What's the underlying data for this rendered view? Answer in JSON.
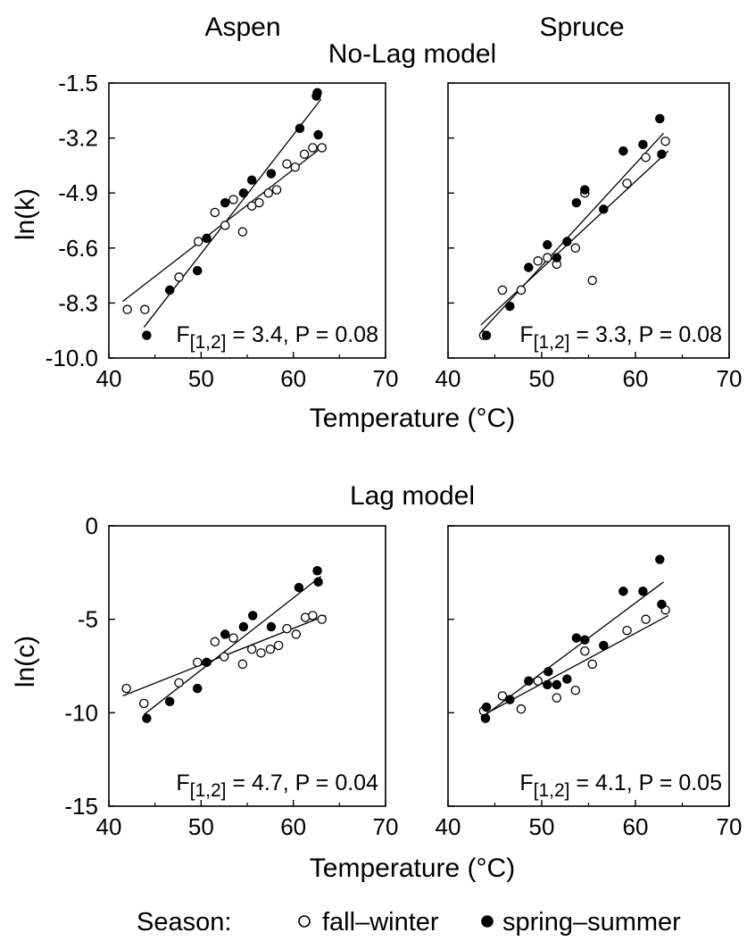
{
  "column_titles": [
    "Aspen",
    "Spruce"
  ],
  "row_titles": [
    "No-Lag model",
    "Lag model"
  ],
  "xlabel": "Temperature (°C)",
  "legend": {
    "title": "Season:",
    "entries": [
      {
        "label": "fall–winter",
        "marker": "open-circle"
      },
      {
        "label": "spring–summer",
        "marker": "filled-circle"
      }
    ]
  },
  "colors": {
    "ink": "#000000",
    "open_fill": "#ffffff"
  },
  "chart_data": [
    {
      "type": "scatter",
      "panel": "aspen-nolag",
      "ylabel": "ln(k)",
      "xlim": [
        40,
        70
      ],
      "ylim": [
        -10.0,
        -1.5
      ],
      "xticks": [
        "40",
        "50",
        "60",
        "70"
      ],
      "yticks": [
        "-10.0",
        "-8.3",
        "-6.6",
        "-4.9",
        "-3.2",
        "-1.5"
      ],
      "annotation": {
        "F": "F",
        "sub": "[1,2]",
        "stat": " = 3.4, P = 0.08",
        "placement": "bottom-right"
      },
      "series": [
        {
          "name": "fall–winter",
          "marker": "open",
          "x": [
            42,
            43.9,
            47.6,
            49.7,
            51.5,
            52.6,
            53.5,
            54.5,
            55.5,
            56.3,
            57.3,
            58.2,
            59.3,
            60.2,
            61.2,
            62.1,
            63.1
          ],
          "y": [
            -8.5,
            -8.5,
            -7.5,
            -6.4,
            -5.5,
            -5.9,
            -5.1,
            -6.1,
            -5.3,
            -5.2,
            -4.9,
            -4.8,
            -4.0,
            -4.1,
            -3.7,
            -3.5,
            -3.5
          ],
          "fit": [
            [
              41.5,
              -8.25
            ],
            [
              63.5,
              -3.4
            ]
          ]
        },
        {
          "name": "spring–summer",
          "marker": "filled",
          "x": [
            44.1,
            46.6,
            49.6,
            50.6,
            52.6,
            54.6,
            55.5,
            57.6,
            60.7,
            62.5,
            62.6,
            62.7
          ],
          "y": [
            -9.3,
            -7.9,
            -7.3,
            -6.3,
            -5.2,
            -4.9,
            -4.5,
            -4.3,
            -2.9,
            -1.9,
            -1.8,
            -3.1
          ],
          "fit": [
            [
              43.8,
              -9.05
            ],
            [
              63.0,
              -2.0
            ]
          ]
        }
      ]
    },
    {
      "type": "scatter",
      "panel": "spruce-nolag",
      "ylabel": "",
      "xlim": [
        40,
        70
      ],
      "ylim": [
        -10.0,
        -1.5
      ],
      "xticks": [
        "40",
        "50",
        "60",
        "70"
      ],
      "yticks": [],
      "annotation": {
        "F": "F",
        "sub": "[1,2]",
        "stat": " = 3.3, P = 0.08",
        "placement": "bottom-right"
      },
      "series": [
        {
          "name": "fall–winter",
          "marker": "open",
          "x": [
            43.8,
            45.8,
            47.8,
            49.6,
            50.6,
            51.6,
            53.6,
            54.6,
            55.4,
            59.1,
            61.1,
            63.2
          ],
          "y": [
            -9.3,
            -7.9,
            -7.9,
            -7.0,
            -6.9,
            -7.1,
            -6.6,
            -4.9,
            -7.6,
            -4.6,
            -3.8,
            -3.3
          ],
          "fit": [
            [
              43.5,
              -8.98
            ],
            [
              63.5,
              -3.6
            ]
          ]
        },
        {
          "name": "spring–summer",
          "marker": "filled",
          "x": [
            44.1,
            46.6,
            48.6,
            50.6,
            51.6,
            52.7,
            53.7,
            54.6,
            56.6,
            58.7,
            60.8,
            62.6,
            62.8
          ],
          "y": [
            -9.3,
            -8.4,
            -7.2,
            -6.5,
            -6.9,
            -6.4,
            -5.2,
            -4.8,
            -5.4,
            -3.6,
            -3.4,
            -2.6,
            -3.7
          ],
          "fit": [
            [
              43.5,
              -9.2
            ],
            [
              63.0,
              -3.05
            ]
          ]
        }
      ]
    },
    {
      "type": "scatter",
      "panel": "aspen-lag",
      "ylabel": "ln(c)",
      "xlim": [
        40,
        70
      ],
      "ylim": [
        -15,
        0
      ],
      "xticks": [
        "40",
        "50",
        "60",
        "70"
      ],
      "yticks": [
        "-15",
        "-10",
        "-5",
        "0"
      ],
      "annotation": {
        "F": "F",
        "sub": "[1,2]",
        "stat": " = 4.7, P = 0.04",
        "placement": "bottom-right"
      },
      "series": [
        {
          "name": "fall–winter",
          "marker": "open",
          "x": [
            41.9,
            43.8,
            47.6,
            49.6,
            51.5,
            52.5,
            53.5,
            54.5,
            55.5,
            56.5,
            57.5,
            58.4,
            59.3,
            60.3,
            61.3,
            62.1,
            63.1
          ],
          "y": [
            -8.7,
            -9.5,
            -8.4,
            -7.3,
            -6.2,
            -7.0,
            -6.0,
            -7.4,
            -6.6,
            -6.8,
            -6.6,
            -6.4,
            -5.5,
            -5.8,
            -4.9,
            -4.8,
            -5.0
          ],
          "fit": [
            [
              41.5,
              -9.1
            ],
            [
              63.5,
              -4.8
            ]
          ]
        },
        {
          "name": "spring–summer",
          "marker": "filled",
          "x": [
            44.1,
            46.6,
            49.6,
            50.6,
            52.6,
            54.6,
            55.6,
            57.6,
            60.6,
            62.6,
            62.7
          ],
          "y": [
            -10.3,
            -9.4,
            -8.7,
            -7.3,
            -5.8,
            -5.4,
            -4.8,
            -5.4,
            -3.3,
            -2.4,
            -3.0
          ],
          "fit": [
            [
              43.8,
              -10.1
            ],
            [
              63.0,
              -2.7
            ]
          ]
        }
      ]
    },
    {
      "type": "scatter",
      "panel": "spruce-lag",
      "ylabel": "",
      "xlim": [
        40,
        70
      ],
      "ylim": [
        -15,
        0
      ],
      "xticks": [
        "40",
        "50",
        "60",
        "70"
      ],
      "yticks": [],
      "annotation": {
        "F": "F",
        "sub": "[1,2]",
        "stat": " = 4.1, P = 0.05",
        "placement": "bottom-right"
      },
      "series": [
        {
          "name": "fall–winter",
          "marker": "open",
          "x": [
            43.8,
            45.8,
            47.8,
            49.6,
            51.6,
            53.6,
            54.6,
            55.4,
            59.1,
            61.1,
            63.2
          ],
          "y": [
            -9.9,
            -9.1,
            -9.8,
            -8.3,
            -9.2,
            -8.8,
            -6.7,
            -7.4,
            -5.6,
            -5.0,
            -4.5
          ],
          "fit": [
            [
              43.5,
              -10.2
            ],
            [
              63.5,
              -4.8
            ]
          ]
        },
        {
          "name": "spring–summer",
          "marker": "filled",
          "x": [
            44.0,
            44.1,
            46.6,
            48.6,
            50.6,
            50.7,
            51.6,
            52.7,
            53.7,
            54.6,
            56.6,
            58.7,
            60.8,
            62.6,
            62.8
          ],
          "y": [
            -10.3,
            -9.7,
            -9.3,
            -8.3,
            -8.5,
            -7.8,
            -8.5,
            -8.2,
            -6.0,
            -6.1,
            -6.4,
            -3.5,
            -3.5,
            -1.8,
            -4.2
          ],
          "fit": [
            [
              43.5,
              -10.3
            ],
            [
              63.0,
              -3.0
            ]
          ]
        }
      ]
    }
  ]
}
